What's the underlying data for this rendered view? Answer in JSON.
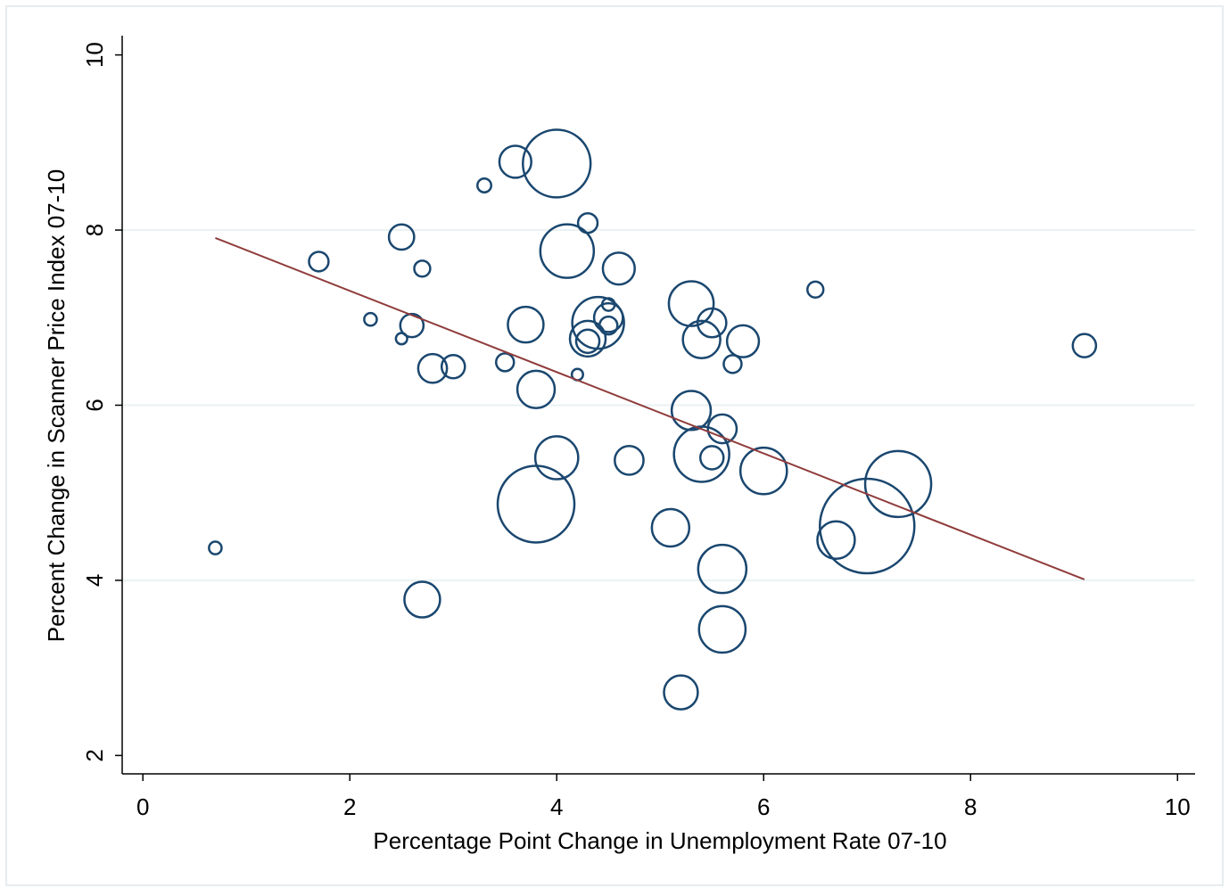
{
  "chart_data": {
    "type": "scatter",
    "x_label": "Percentage Point Change in Unemployment Rate 07-10",
    "y_label": "Percent Change in Scanner Price Index 07-10",
    "xlim": [
      -0.2,
      10.17
    ],
    "ylim": [
      1.79,
      10.22
    ],
    "xticks": [
      0,
      2,
      4,
      6,
      8,
      10
    ],
    "yticks": [
      2,
      4,
      6,
      8,
      10
    ],
    "grid": true,
    "series": [
      {
        "color": "#1a476f",
        "x": [
          0.7,
          1.7,
          2.2,
          2.5,
          2.5,
          2.7,
          2.6,
          2.8,
          3.0,
          2.7,
          3.3,
          3.5,
          3.6,
          4.0,
          3.7,
          3.8,
          3.8,
          4.0,
          4.3,
          4.1,
          4.2,
          4.6,
          4.4,
          4.5,
          4.5,
          4.3,
          4.3,
          4.5,
          4.7,
          5.1,
          5.2,
          5.3,
          5.5,
          5.4,
          5.8,
          5.7,
          5.3,
          5.6,
          5.4,
          5.5,
          6.0,
          5.6,
          5.6,
          6.5,
          6.7,
          7.0,
          7.3,
          9.1
        ],
        "values": [
          4.37,
          7.64,
          6.98,
          7.92,
          6.76,
          7.56,
          6.91,
          6.42,
          6.44,
          3.78,
          8.51,
          6.49,
          8.78,
          8.76,
          6.92,
          6.18,
          4.87,
          5.4,
          8.08,
          7.76,
          6.35,
          7.56,
          6.94,
          7.15,
          7.0,
          6.76,
          6.73,
          6.91,
          5.37,
          4.6,
          2.72,
          7.16,
          6.94,
          6.75,
          6.73,
          6.47,
          5.94,
          5.73,
          5.44,
          5.4,
          5.25,
          4.13,
          3.44,
          7.32,
          4.46,
          4.62,
          5.1,
          6.68
        ],
        "sizes": [
          0.5,
          1.2,
          0.5,
          2.0,
          0.4,
          0.8,
          1.7,
          2.6,
          1.7,
          4.0,
          0.6,
          1.0,
          3.2,
          14.4,
          4.0,
          4.4,
          18.5,
          5.8,
          1.2,
          9.0,
          0.4,
          3.2,
          8.4,
          0.5,
          2.6,
          4.0,
          1.7,
          1.0,
          2.6,
          4.4,
          3.6,
          6.3,
          2.6,
          4.4,
          3.2,
          1.0,
          4.8,
          2.6,
          9.6,
          1.7,
          6.8,
          7.3,
          6.8,
          0.8,
          4.4,
          28.1,
          13.7,
          1.7
        ]
      }
    ],
    "fit_line": {
      "color": "#903c3c",
      "x": [
        0.7,
        9.1
      ],
      "values": [
        7.91,
        4.01
      ]
    }
  }
}
